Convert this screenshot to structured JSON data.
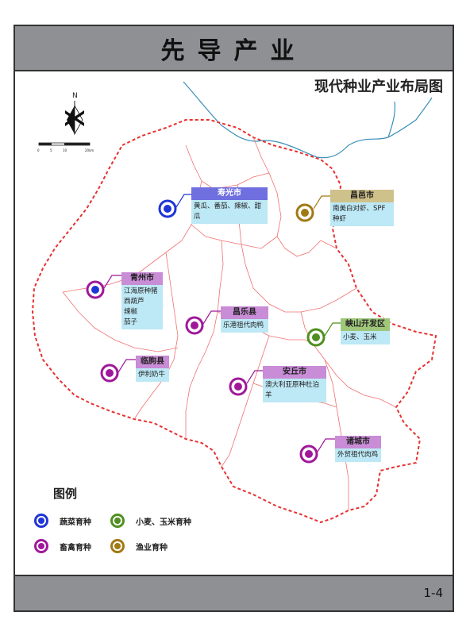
{
  "header": {
    "title": "先导产业"
  },
  "subtitle": "现代种业产业布局图",
  "footer": {
    "page": "1-4"
  },
  "compass": {
    "north_label": "N",
    "scale_ticks": [
      "0",
      "5",
      "10",
      "20km"
    ]
  },
  "colors": {
    "vegetable": "#1f35d6",
    "livestock": "#a0189a",
    "grain": "#4f8f1f",
    "fishery": "#a07a14",
    "boundary": "#e83030",
    "river": "#3a8fb8"
  },
  "locations": [
    {
      "name": "寿光市",
      "desc": [
        "黄瓜、番茄、辣椒、甜瓜"
      ],
      "type": "vegetable",
      "label_color": "#6f6fe0"
    },
    {
      "name": "昌邑市",
      "desc": [
        "南美白对虾、SPF种虾"
      ],
      "type": "fishery",
      "label_color": "#cfc18a"
    },
    {
      "name": "青州市",
      "desc": [
        "江海原种猪",
        "西葫芦",
        "辣椒",
        "茄子"
      ],
      "type": "vegetable+livestock",
      "label_color": "#c98cd6"
    },
    {
      "name": "昌乐县",
      "desc": [
        "乐港祖代肉鸭"
      ],
      "type": "livestock",
      "label_color": "#c98cd6"
    },
    {
      "name": "峡山开发区",
      "desc": [
        "小麦、玉米"
      ],
      "type": "grain",
      "label_color": "#9fc77a"
    },
    {
      "name": "临朐县",
      "desc": [
        "伊利奶牛"
      ],
      "type": "livestock",
      "label_color": "#c98cd6"
    },
    {
      "name": "安丘市",
      "desc": [
        "澳大利亚原种杜泊羊"
      ],
      "type": "livestock",
      "label_color": "#c98cd6"
    },
    {
      "name": "诸城市",
      "desc": [
        "外贸祖代肉鸡"
      ],
      "type": "livestock",
      "label_color": "#c98cd6"
    }
  ],
  "legend": {
    "title": "图例",
    "items": [
      {
        "label": "蔬菜育种",
        "type": "vegetable"
      },
      {
        "label": "小麦、玉米育种",
        "type": "grain"
      },
      {
        "label": "畜禽育种",
        "type": "livestock"
      },
      {
        "label": "渔业育种",
        "type": "fishery"
      }
    ]
  }
}
